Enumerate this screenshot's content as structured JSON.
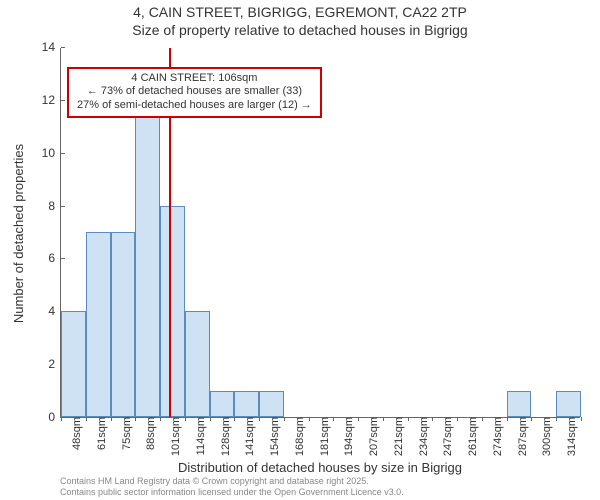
{
  "title": "4, CAIN STREET, BIGRIGG, EGREMONT, CA22 2TP",
  "subtitle": "Size of property relative to detached houses in Bigrigg",
  "ylabel": "Number of detached properties",
  "xlabel": "Distribution of detached houses by size in Bigrigg",
  "footer_line1": "Contains HM Land Registry data © Crown copyright and database right 2025.",
  "footer_line2": "Contains public sector information licensed under the Open Government Licence v3.0.",
  "chart": {
    "type": "histogram",
    "ylim": [
      0,
      14
    ],
    "ytick_step": 2,
    "bar_fill": "#cfe2f3",
    "bar_border": "#5b8bbf",
    "refline_color": "#cc0000",
    "background_color": "#ffffff",
    "axis_color": "#666666",
    "font_family": "Arial",
    "title_fontsize": 14,
    "label_fontsize": 13,
    "tick_fontsize": 12,
    "x_categories": [
      "48sqm",
      "61sqm",
      "75sqm",
      "88sqm",
      "101sqm",
      "114sqm",
      "128sqm",
      "141sqm",
      "154sqm",
      "168sqm",
      "181sqm",
      "194sqm",
      "207sqm",
      "221sqm",
      "234sqm",
      "247sqm",
      "261sqm",
      "274sqm",
      "287sqm",
      "300sqm",
      "314sqm"
    ],
    "values": [
      4,
      7,
      7,
      12,
      8,
      4,
      1,
      1,
      1,
      0,
      0,
      0,
      0,
      0,
      0,
      0,
      0,
      0,
      1,
      0,
      1
    ],
    "reference": {
      "bin_index": 4,
      "position_in_bin": 0.38,
      "annot_line1": "4 CAIN STREET: 106sqm",
      "annot_line2": "← 73% of detached houses are smaller (33)",
      "annot_line3": "27% of semi-detached houses are larger (12) →"
    }
  }
}
